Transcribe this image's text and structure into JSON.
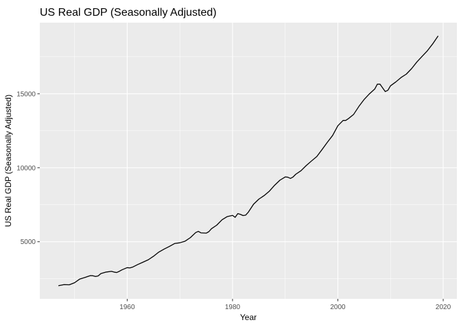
{
  "chart_data": {
    "type": "line",
    "title": "US Real GDP (Seasonally Adjusted)",
    "xlabel": "Year",
    "ylabel": "US Real GDP (Seasonally Adjusted)",
    "xlim": [
      1943.4,
      2022.6
    ],
    "ylim": [
      1140,
      19810
    ],
    "x_ticks": [
      1960,
      1980,
      2000,
      2020
    ],
    "x_tick_labels": [
      "1960",
      "1980",
      "2000",
      "2020"
    ],
    "y_ticks": [
      5000,
      10000,
      15000
    ],
    "y_tick_labels": [
      "5000",
      "10000",
      "15000"
    ],
    "grid": true,
    "legend": "none",
    "series": [
      {
        "color": "#000000",
        "x": [
          1947.0,
          1948.0,
          1949.0,
          1950.0,
          1951.0,
          1952.0,
          1953.0,
          1953.5,
          1954.0,
          1954.5,
          1955.0,
          1956.0,
          1957.0,
          1957.5,
          1958.0,
          1958.5,
          1959.0,
          1960.0,
          1960.5,
          1961.0,
          1962.0,
          1963.0,
          1964.0,
          1965.0,
          1966.0,
          1967.0,
          1968.0,
          1969.0,
          1970.0,
          1971.0,
          1972.0,
          1973.0,
          1973.5,
          1974.0,
          1975.0,
          1975.5,
          1976.0,
          1977.0,
          1978.0,
          1979.0,
          1980.0,
          1980.5,
          1981.0,
          1981.5,
          1982.0,
          1982.5,
          1983.0,
          1984.0,
          1985.0,
          1986.0,
          1987.0,
          1988.0,
          1989.0,
          1990.0,
          1990.5,
          1991.0,
          1991.5,
          1992.0,
          1993.0,
          1994.0,
          1995.0,
          1996.0,
          1997.0,
          1998.0,
          1999.0,
          2000.0,
          2001.0,
          2001.5,
          2002.0,
          2003.0,
          2004.0,
          2005.0,
          2006.0,
          2007.0,
          2007.5,
          2008.0,
          2008.5,
          2009.0,
          2009.5,
          2010.0,
          2011.0,
          2012.0,
          2013.0,
          2014.0,
          2015.0,
          2016.0,
          2017.0,
          2018.0,
          2019.0
        ],
        "y": [
          2030,
          2100,
          2090,
          2230,
          2480,
          2590,
          2710,
          2700,
          2650,
          2690,
          2850,
          2950,
          3000,
          2950,
          2920,
          3000,
          3100,
          3250,
          3230,
          3280,
          3460,
          3620,
          3780,
          4020,
          4300,
          4500,
          4680,
          4880,
          4930,
          5040,
          5280,
          5620,
          5700,
          5600,
          5580,
          5680,
          5880,
          6120,
          6480,
          6700,
          6780,
          6650,
          6900,
          6850,
          6770,
          6800,
          7000,
          7540,
          7880,
          8120,
          8420,
          8820,
          9160,
          9380,
          9360,
          9280,
          9380,
          9560,
          9800,
          10150,
          10460,
          10760,
          11230,
          11720,
          12180,
          12840,
          13200,
          13200,
          13320,
          13610,
          14150,
          14620,
          15000,
          15320,
          15650,
          15650,
          15400,
          15150,
          15240,
          15540,
          15800,
          16100,
          16330,
          16700,
          17150,
          17530,
          17910,
          18370,
          18890
        ]
      }
    ]
  }
}
